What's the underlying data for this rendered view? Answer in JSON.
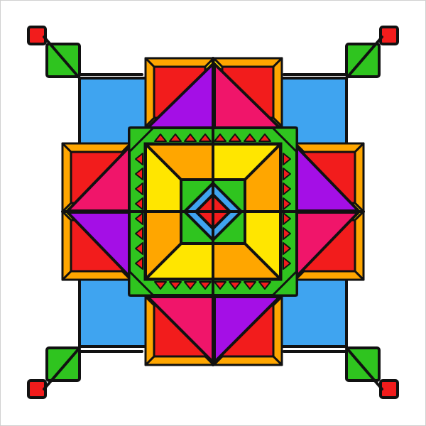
{
  "image": {
    "subject": "",
    "palette": {
      "outline": "#111111",
      "background": "#ffffff",
      "blue": "#3fa4f0",
      "deep_blue": "#1c3fd6",
      "green": "#2fc41f",
      "red": "#f21c1c",
      "yellow": "#ffe600",
      "orange": "#ffa600",
      "magenta": "#f0156a",
      "purple": "#a40fe6"
    }
  }
}
